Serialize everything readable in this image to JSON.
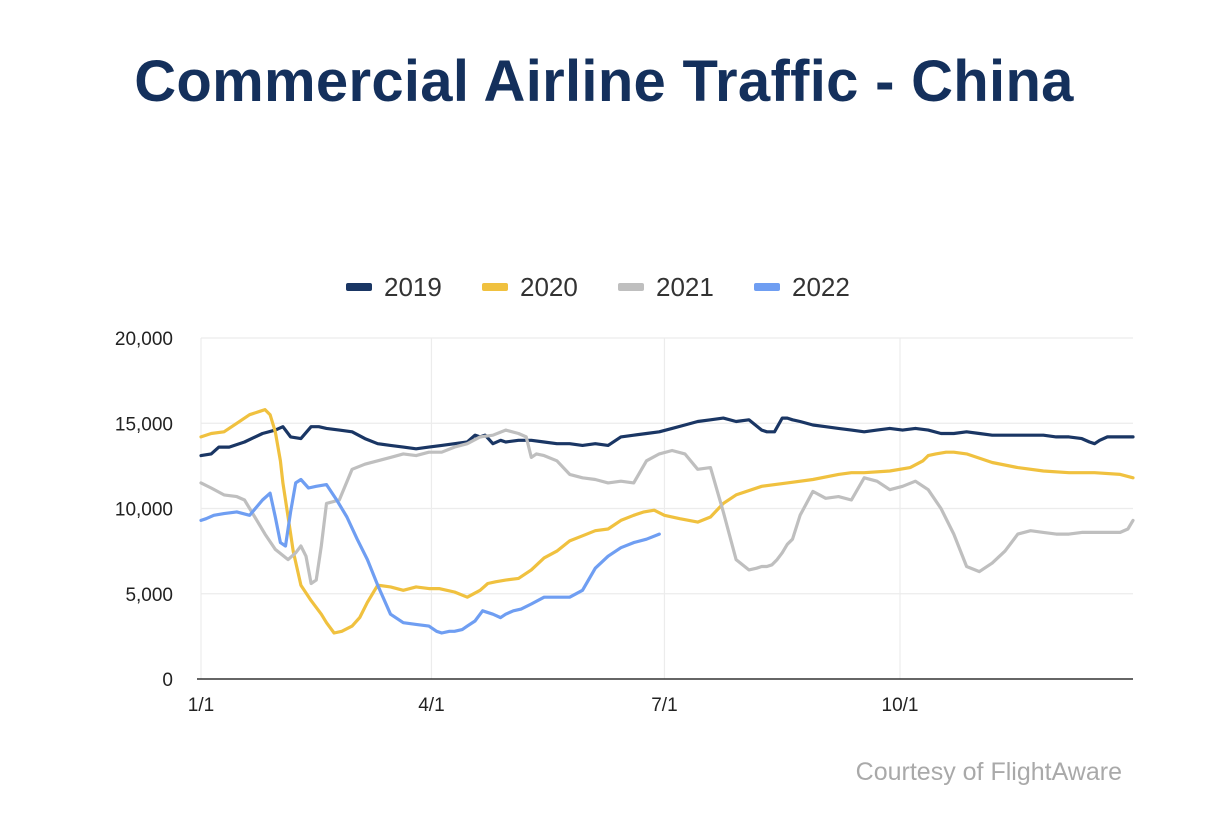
{
  "title": "Commercial Airline Traffic - China",
  "credit": "Courtesy of FlightAware",
  "chart_data": {
    "type": "line",
    "title": "Commercial Airline Traffic - China",
    "xlabel": "",
    "ylabel": "",
    "x_range": [
      1,
      365
    ],
    "ylim": [
      0,
      20000
    ],
    "yticks": [
      0,
      5000,
      10000,
      15000,
      20000
    ],
    "ytick_labels": [
      "0",
      "5,000",
      "10,000",
      "15,000",
      "20,000"
    ],
    "xticks": [
      1,
      91,
      182,
      274
    ],
    "xtick_labels": [
      "1/1",
      "4/1",
      "7/1",
      "10/1"
    ],
    "grid": true,
    "legend_position": "top-center",
    "series": [
      {
        "name": "2019",
        "color": "#1a3664",
        "x": [
          1,
          5,
          8,
          12,
          18,
          25,
          30,
          33,
          36,
          40,
          44,
          47,
          50,
          55,
          60,
          65,
          70,
          75,
          80,
          85,
          90,
          95,
          100,
          105,
          108,
          110,
          112,
          115,
          118,
          120,
          125,
          130,
          135,
          140,
          145,
          150,
          155,
          160,
          165,
          170,
          175,
          180,
          185,
          190,
          195,
          200,
          205,
          210,
          215,
          220,
          222,
          225,
          228,
          230,
          232,
          235,
          240,
          245,
          250,
          255,
          260,
          265,
          270,
          275,
          280,
          285,
          290,
          295,
          300,
          305,
          310,
          315,
          320,
          325,
          330,
          335,
          340,
          345,
          348,
          350,
          352,
          355,
          360,
          365
        ],
        "values": [
          13100,
          13200,
          13600,
          13600,
          13900,
          14400,
          14600,
          14800,
          14200,
          14100,
          14800,
          14800,
          14700,
          14600,
          14500,
          14100,
          13800,
          13700,
          13600,
          13500,
          13600,
          13700,
          13800,
          13900,
          14300,
          14200,
          14300,
          13800,
          14000,
          13900,
          14000,
          14000,
          13900,
          13800,
          13800,
          13700,
          13800,
          13700,
          14200,
          14300,
          14400,
          14500,
          14700,
          14900,
          15100,
          15200,
          15300,
          15100,
          15200,
          14600,
          14500,
          14500,
          15300,
          15300,
          15200,
          15100,
          14900,
          14800,
          14700,
          14600,
          14500,
          14600,
          14700,
          14600,
          14700,
          14600,
          14400,
          14400,
          14500,
          14400,
          14300,
          14300,
          14300,
          14300,
          14300,
          14200,
          14200,
          14100,
          13900,
          13800,
          14000,
          14200,
          14200,
          14200
        ]
      },
      {
        "name": "2020",
        "color": "#f0c13f",
        "x": [
          1,
          5,
          10,
          15,
          20,
          24,
          26,
          28,
          30,
          32,
          33,
          35,
          37,
          40,
          44,
          48,
          50,
          53,
          56,
          60,
          63,
          66,
          70,
          75,
          80,
          85,
          90,
          94,
          97,
          100,
          105,
          110,
          113,
          116,
          120,
          125,
          130,
          135,
          140,
          145,
          150,
          155,
          160,
          165,
          170,
          174,
          178,
          182,
          188,
          195,
          200,
          205,
          210,
          220,
          230,
          240,
          250,
          255,
          260,
          270,
          278,
          283,
          285,
          288,
          292,
          295,
          300,
          310,
          320,
          330,
          340,
          350,
          360,
          365
        ],
        "values": [
          14200,
          14400,
          14500,
          15000,
          15500,
          15700,
          15800,
          15500,
          14500,
          12800,
          11500,
          9500,
          7500,
          5500,
          4600,
          3800,
          3300,
          2700,
          2800,
          3100,
          3600,
          4500,
          5500,
          5400,
          5200,
          5400,
          5300,
          5300,
          5200,
          5100,
          4800,
          5200,
          5600,
          5700,
          5800,
          5900,
          6400,
          7100,
          7500,
          8100,
          8400,
          8700,
          8800,
          9300,
          9600,
          9800,
          9900,
          9600,
          9400,
          9200,
          9500,
          10300,
          10800,
          11300,
          11500,
          11700,
          12000,
          12100,
          12100,
          12200,
          12400,
          12800,
          13100,
          13200,
          13300,
          13300,
          13200,
          12700,
          12400,
          12200,
          12100,
          12100,
          12000,
          11800
        ]
      },
      {
        "name": "2021",
        "color": "#bfbfbf",
        "x": [
          1,
          5,
          10,
          15,
          18,
          22,
          26,
          30,
          35,
          38,
          40,
          42,
          44,
          46,
          48,
          50,
          55,
          60,
          65,
          70,
          75,
          80,
          85,
          90,
          95,
          100,
          105,
          110,
          115,
          120,
          125,
          128,
          130,
          132,
          135,
          140,
          145,
          150,
          155,
          160,
          165,
          170,
          175,
          180,
          185,
          190,
          195,
          200,
          205,
          210,
          215,
          218,
          220,
          222,
          224,
          226,
          228,
          230,
          232,
          235,
          240,
          245,
          250,
          255,
          260,
          265,
          270,
          275,
          280,
          285,
          290,
          295,
          300,
          305,
          310,
          315,
          320,
          325,
          330,
          335,
          340,
          345,
          350,
          355,
          360,
          363,
          365
        ],
        "values": [
          11500,
          11200,
          10800,
          10700,
          10500,
          9500,
          8500,
          7600,
          7000,
          7400,
          7800,
          7200,
          5600,
          5800,
          7800,
          10300,
          10500,
          12300,
          12600,
          12800,
          13000,
          13200,
          13100,
          13300,
          13300,
          13600,
          13800,
          14200,
          14300,
          14600,
          14400,
          14200,
          13000,
          13200,
          13100,
          12800,
          12000,
          11800,
          11700,
          11500,
          11600,
          11500,
          12800,
          13200,
          13400,
          13200,
          12300,
          12400,
          9800,
          7000,
          6400,
          6500,
          6600,
          6600,
          6700,
          7000,
          7400,
          7900,
          8200,
          9600,
          11000,
          10600,
          10700,
          10500,
          11800,
          11600,
          11100,
          11300,
          11600,
          11100,
          10000,
          8500,
          6600,
          6300,
          6800,
          7500,
          8500,
          8700,
          8600,
          8500,
          8500,
          8600,
          8600,
          8600,
          8600,
          8800,
          9300
        ]
      },
      {
        "name": "2022",
        "color": "#6f9ef2",
        "x": [
          1,
          3,
          6,
          10,
          15,
          20,
          25,
          28,
          30,
          32,
          34,
          36,
          38,
          40,
          43,
          46,
          50,
          54,
          58,
          62,
          66,
          70,
          75,
          80,
          85,
          90,
          93,
          95,
          98,
          100,
          103,
          105,
          108,
          111,
          115,
          118,
          120,
          123,
          126,
          130,
          135,
          140,
          145,
          150,
          155,
          160,
          165,
          170,
          175,
          180
        ],
        "values": [
          9300,
          9400,
          9600,
          9700,
          9800,
          9600,
          10500,
          10900,
          9500,
          8000,
          7800,
          9800,
          11500,
          11700,
          11200,
          11300,
          11400,
          10500,
          9500,
          8200,
          7000,
          5500,
          3800,
          3300,
          3200,
          3100,
          2800,
          2700,
          2800,
          2800,
          2900,
          3100,
          3400,
          4000,
          3800,
          3600,
          3800,
          4000,
          4100,
          4400,
          4800,
          4800,
          4800,
          5200,
          6500,
          7200,
          7700,
          8000,
          8200,
          8500
        ]
      }
    ]
  }
}
